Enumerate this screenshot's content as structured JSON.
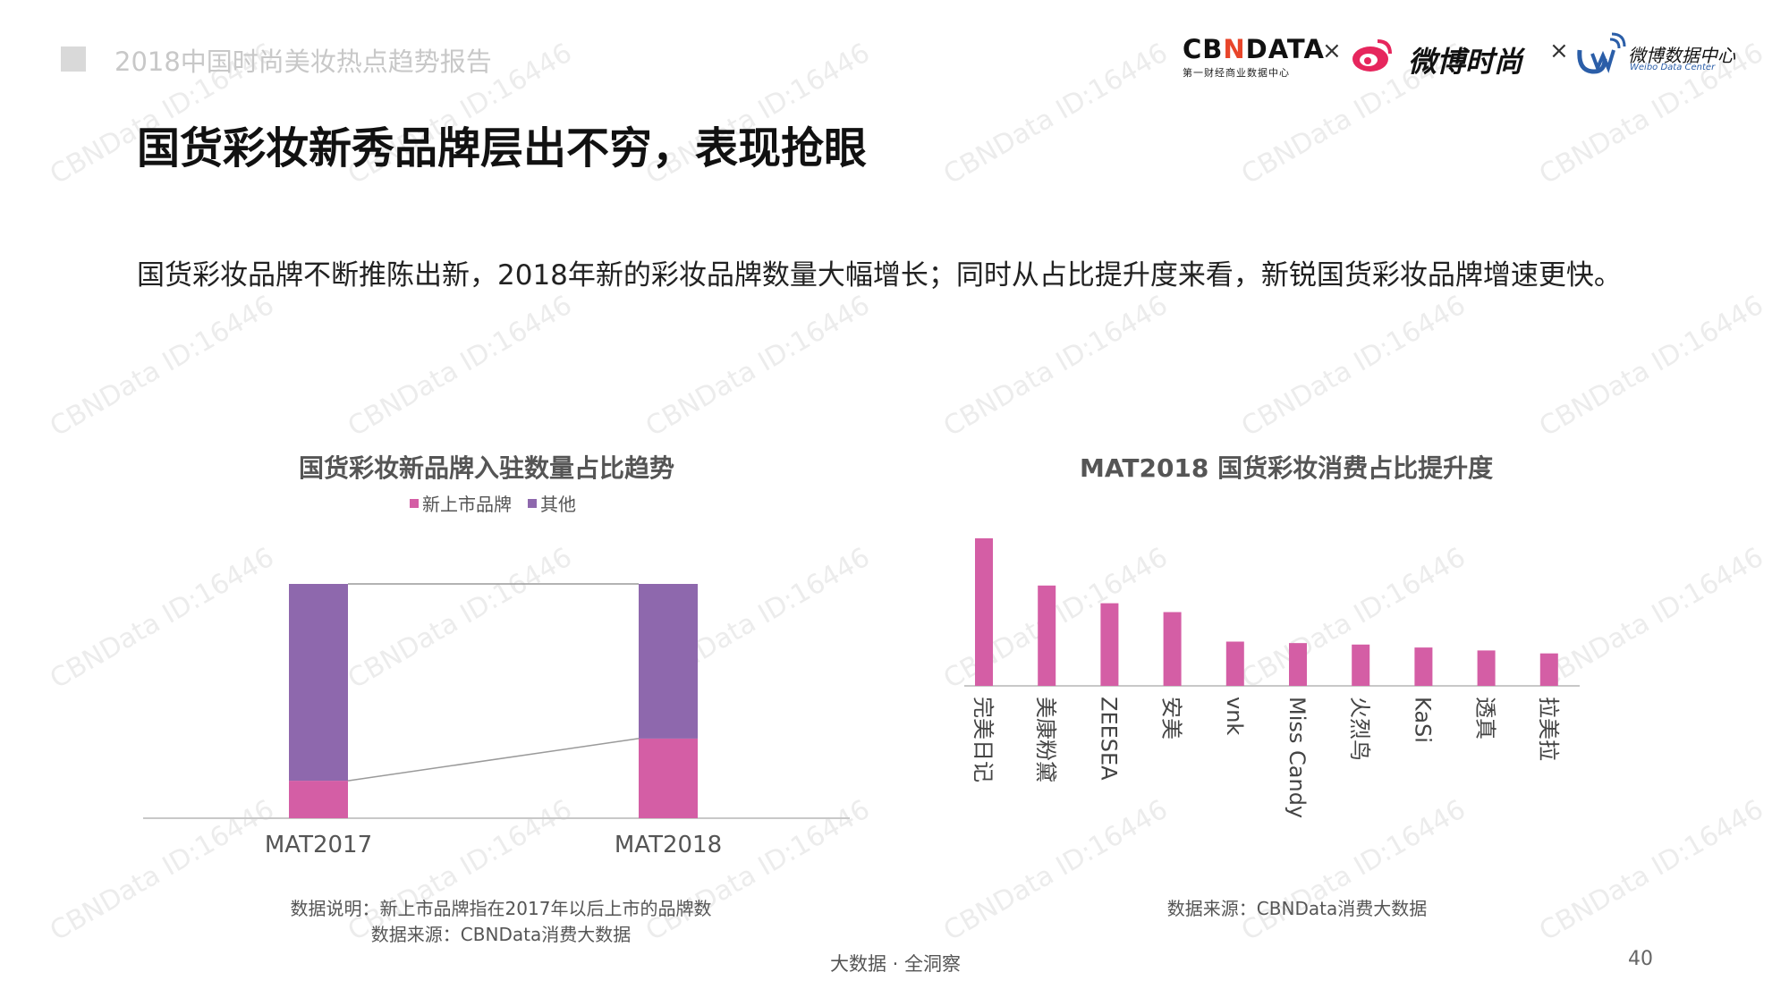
{
  "header": {
    "report_title": "2018中国时尚美妆热点趋势报告",
    "logo_cbndata": "CBNDATA",
    "logo_cbndata_sub": "第一财经商业数据中心",
    "times": "×",
    "logo_weibo": "微博时尚",
    "logo_wdc": "微博数据中心",
    "logo_wdc_sub": "Weibo Data Center"
  },
  "slide": {
    "title": "国货彩妆新秀品牌层出不穷，表现抢眼",
    "description": "国货彩妆品牌不断推陈出新，2018年新的彩妆品牌数量大幅增长；同时从占比提升度来看，新锐国货彩妆品牌增速更快。"
  },
  "colors": {
    "pink": "#d45ea5",
    "purple": "#8e68ad",
    "axis": "#c8c8c8",
    "connector": "#9a9a9a"
  },
  "chart_data": [
    {
      "type": "bar",
      "stacked": true,
      "normalized": true,
      "title": "国货彩妆新品牌入驻数量占比趋势",
      "legend_position": "top",
      "categories": [
        "MAT2017",
        "MAT2018"
      ],
      "series": [
        {
          "name": "新上市品牌",
          "values": [
            0.16,
            0.34
          ]
        },
        {
          "name": "其他",
          "values": [
            0.84,
            0.66
          ]
        }
      ],
      "ylim": [
        0,
        1
      ],
      "note_lines": [
        "数据说明：新上市品牌指在2017年以后上市的品牌数",
        "数据来源：CBNData消费大数据"
      ]
    },
    {
      "type": "bar",
      "title": "MAT2018 国货彩妆消费占比提升度",
      "categories": [
        "完美日记",
        "美康粉黛",
        "ZEESEA",
        "安美",
        "vnk",
        "Miss Candy",
        "火烈鸟",
        "KaSi",
        "透真",
        "拉美拉"
      ],
      "values": [
        100,
        68,
        56,
        50,
        30,
        29,
        28,
        26,
        24,
        22
      ],
      "ylim": [
        0,
        100
      ],
      "note_lines": [
        "数据来源：CBNData消费大数据"
      ]
    }
  ],
  "footer": {
    "tagline": "大数据 · 全洞察",
    "page_number": "40"
  },
  "watermark": "CBNData ID:16446"
}
